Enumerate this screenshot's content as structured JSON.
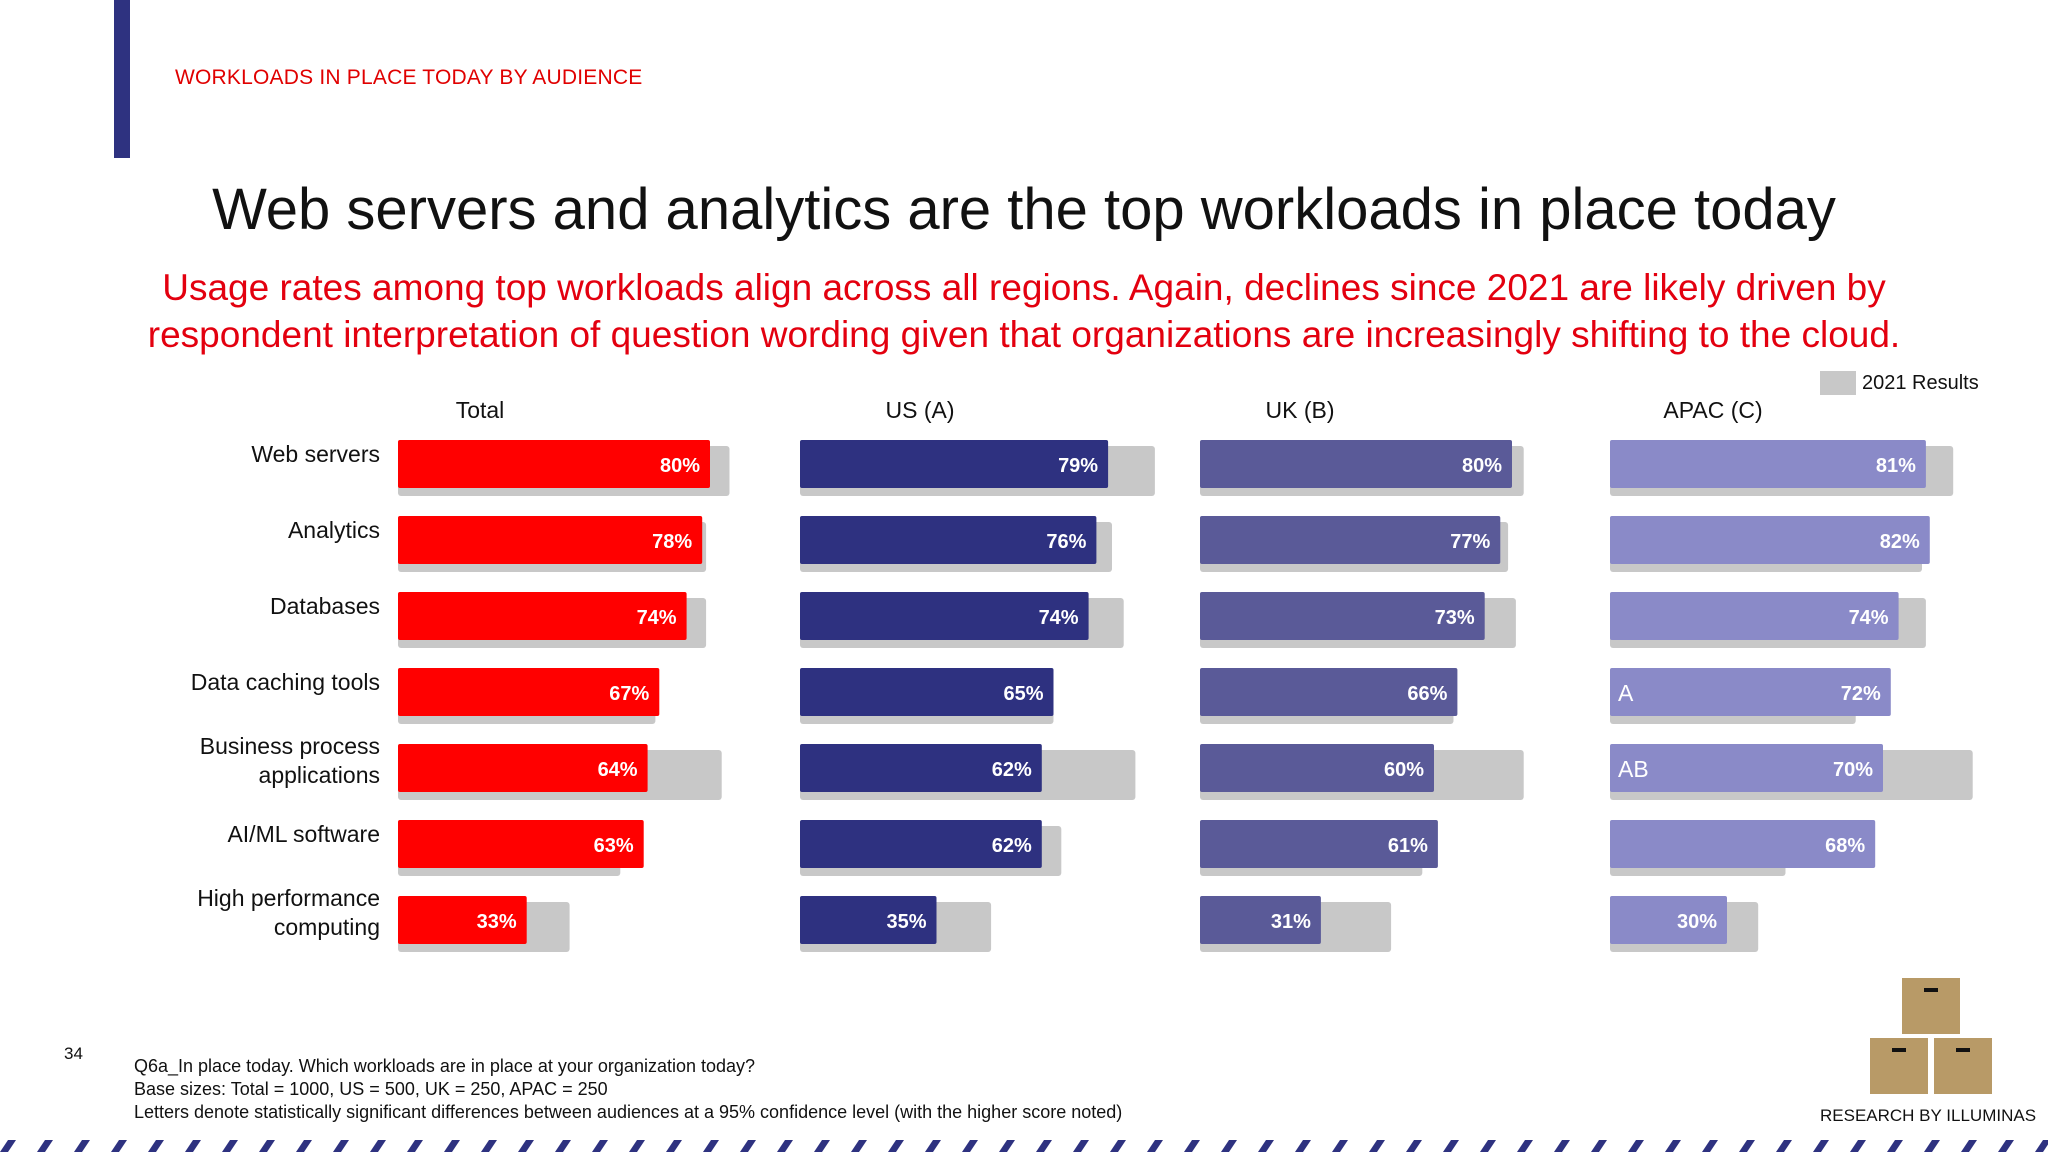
{
  "header": {
    "section_label": "WORKLOADS IN PLACE TODAY BY AUDIENCE",
    "title": "Web servers and analytics are the top workloads in place today",
    "subtitle_line1": "Usage rates among top workloads align across all regions. Again, declines since 2021 are likely driven by",
    "subtitle_line2": "respondent interpretation of question wording given that organizations are increasingly shifting to the cloud."
  },
  "legend": {
    "label": "2021 Results",
    "color": "#c8c8c8"
  },
  "chart_data": {
    "type": "bar",
    "orientation": "horizontal",
    "value_format": "percent",
    "xlim": [
      0,
      100
    ],
    "categories": [
      "Web servers",
      "Analytics",
      "Databases",
      "Data caching tools",
      "Business process applications",
      "AI/ML software",
      "High performance computing"
    ],
    "category_lines": [
      [
        "Web servers"
      ],
      [
        "Analytics"
      ],
      [
        "Databases"
      ],
      [
        "Data caching tools"
      ],
      [
        "Business process",
        "applications"
      ],
      [
        "AI/ML software"
      ],
      [
        "High performance",
        "computing"
      ]
    ],
    "panels": [
      {
        "name": "Total",
        "color": "#ff0000",
        "values": [
          80,
          78,
          74,
          67,
          64,
          63,
          33
        ],
        "results_2021": [
          85,
          79,
          79,
          66,
          83,
          57,
          44
        ],
        "sig_letters": [
          "",
          "",
          "",
          "",
          "",
          "",
          ""
        ]
      },
      {
        "name": "US (A)",
        "color": "#2e3180",
        "values": [
          79,
          76,
          74,
          65,
          62,
          62,
          35
        ],
        "results_2021": [
          91,
          80,
          83,
          65,
          86,
          67,
          49
        ],
        "sig_letters": [
          "",
          "",
          "",
          "",
          "",
          "",
          ""
        ]
      },
      {
        "name": "UK (B)",
        "color": "#5a5a98",
        "values": [
          80,
          77,
          73,
          66,
          60,
          61,
          31
        ],
        "results_2021": [
          83,
          79,
          81,
          65,
          83,
          57,
          49
        ],
        "sig_letters": [
          "",
          "",
          "",
          "",
          "",
          "",
          ""
        ]
      },
      {
        "name": "APAC (C)",
        "color": "#8a8ac8",
        "values": [
          81,
          82,
          74,
          72,
          70,
          68,
          30
        ],
        "results_2021": [
          88,
          80,
          81,
          63,
          93,
          45,
          38
        ],
        "sig_letters": [
          "",
          "",
          "",
          "A",
          "AB",
          "",
          ""
        ]
      }
    ],
    "legend_position": "top-right"
  },
  "footer": {
    "page_number": "34",
    "notes": [
      "Q6a_In place today. Which workloads are in place at your organization today?",
      "Base sizes: Total = 1000, US = 500, UK = 250, APAC = 250",
      "Letters denote statistically significant differences between audiences at a 95% confidence level (with the higher score noted)"
    ],
    "branding": "RESEARCH BY ILLUMINAS",
    "boxes_color": "#b89a67",
    "stripe_color": "#2e3280"
  }
}
